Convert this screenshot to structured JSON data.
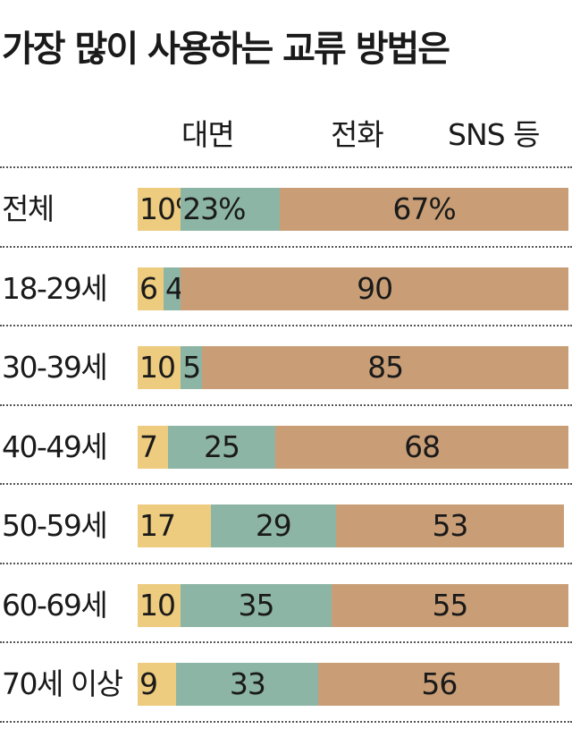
{
  "title": "가장 많이 사용하는 교류 방법은",
  "colors": {
    "face": "#EDCB7F",
    "phone": "#8DB5A5",
    "sns": "#C99E76"
  },
  "chart_data": {
    "type": "bar",
    "orientation": "horizontal",
    "stacked": "100%",
    "title": "가장 많이 사용하는 교류 방법은",
    "categories": [
      "전체",
      "18-29세",
      "30-39세",
      "40-49세",
      "50-59세",
      "60-69세",
      "70세 이상"
    ],
    "legend": [
      "대면",
      "전화",
      "SNS 등"
    ],
    "legend_position": "top",
    "series": [
      {
        "name": "대면",
        "values": [
          10,
          6,
          10,
          7,
          17,
          10,
          9
        ]
      },
      {
        "name": "전화",
        "values": [
          23,
          4,
          5,
          25,
          29,
          35,
          33
        ]
      },
      {
        "name": "SNS 등",
        "values": [
          67,
          90,
          85,
          68,
          53,
          55,
          56
        ]
      }
    ],
    "labels": [
      [
        "10%",
        "23%",
        "67%"
      ],
      [
        "6",
        "4",
        "90"
      ],
      [
        "10",
        "5",
        "85"
      ],
      [
        "7",
        "25",
        "68"
      ],
      [
        "17",
        "29",
        "53"
      ],
      [
        "10",
        "35",
        "55"
      ],
      [
        "9",
        "33",
        "56"
      ]
    ]
  }
}
